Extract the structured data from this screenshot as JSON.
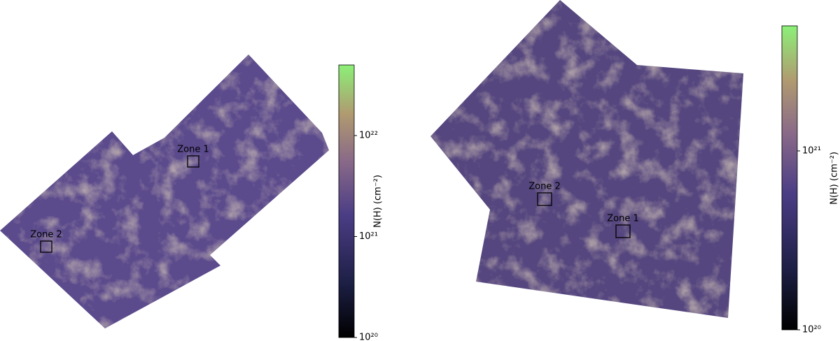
{
  "panels": [
    {
      "zones": [
        {
          "label": "Zone 1"
        },
        {
          "label": "Zone 2"
        }
      ],
      "colorbar": {
        "label": "N(H) (cm⁻²)",
        "range": [
          1e+20,
          5e+22
        ],
        "ticks": [
          {
            "value": 1e+20,
            "label": "10²⁰"
          },
          {
            "value": 1e+21,
            "label": "10²¹"
          },
          {
            "value": 1e+22,
            "label": "10²²"
          }
        ]
      }
    },
    {
      "zones": [
        {
          "label": "Zone 2"
        },
        {
          "label": "Zone 1"
        }
      ],
      "colorbar": {
        "label": "N(H) (cm⁻²)",
        "range": [
          1e+20,
          5e+21
        ],
        "ticks": [
          {
            "value": 1e+20,
            "label": "10²⁰"
          },
          {
            "value": 1e+21,
            "label": "10²¹"
          }
        ]
      }
    }
  ]
}
